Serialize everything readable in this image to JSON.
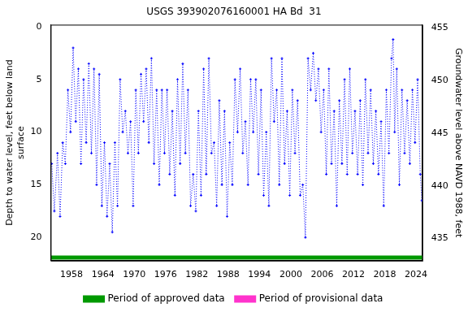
{
  "chart_data": {
    "type": "line",
    "title": "USGS 393902076160001 HA Bd  31",
    "y_label": [
      "Depth to water level, feet below land",
      "surface"
    ],
    "y2_label": "Groundwater level above NAVD 1988, feet",
    "xlim": [
      1954,
      2025.2
    ],
    "xticks": [
      1958,
      1964,
      1970,
      1976,
      1982,
      1988,
      1994,
      2000,
      2006,
      2012,
      2018,
      2024
    ],
    "ylim": [
      22.2,
      -0.2
    ],
    "yticks": [
      0,
      5,
      10,
      15,
      20
    ],
    "y2lim": [
      432.9,
      455.3
    ],
    "y2ticks": [
      435,
      440,
      445,
      450,
      455
    ],
    "grid": false,
    "legend": "bottom",
    "series": [
      {
        "color": "#0000ff",
        "marker": "plus",
        "line_style": "dotted",
        "x": [
          1954.2,
          1954.7,
          1955.3,
          1955.8,
          1956.3,
          1956.8,
          1957.3,
          1957.8,
          1958.3,
          1958.8,
          1959.3,
          1959.8,
          1960.3,
          1960.8,
          1961.3,
          1961.8,
          1962.3,
          1962.8,
          1963.3,
          1963.8,
          1964.3,
          1964.8,
          1965.3,
          1965.8,
          1966.3,
          1966.8,
          1967.3,
          1967.8,
          1968.3,
          1968.8,
          1969.3,
          1969.8,
          1970.3,
          1970.8,
          1971.3,
          1971.8,
          1972.3,
          1972.8,
          1973.3,
          1973.8,
          1974.3,
          1974.8,
          1975.3,
          1975.8,
          1976.3,
          1976.8,
          1977.3,
          1977.8,
          1978.3,
          1978.8,
          1979.3,
          1979.8,
          1980.3,
          1980.8,
          1981.3,
          1981.8,
          1982.3,
          1982.8,
          1983.3,
          1983.8,
          1984.3,
          1984.8,
          1985.3,
          1985.8,
          1986.3,
          1986.8,
          1987.3,
          1987.8,
          1988.3,
          1988.8,
          1989.3,
          1989.8,
          1990.3,
          1990.8,
          1991.3,
          1991.8,
          1992.3,
          1992.8,
          1993.3,
          1993.8,
          1994.3,
          1994.8,
          1995.3,
          1995.8,
          1996.3,
          1996.8,
          1997.3,
          1997.8,
          1998.3,
          1998.8,
          1999.3,
          1999.8,
          2000.3,
          2000.8,
          2001.3,
          2001.8,
          2002.3,
          2002.8,
          2003.3,
          2003.8,
          2004.3,
          2004.8,
          2005.3,
          2005.8,
          2006.3,
          2006.8,
          2007.3,
          2007.8,
          2008.3,
          2008.8,
          2009.3,
          2009.8,
          2010.3,
          2010.8,
          2011.3,
          2011.8,
          2012.3,
          2012.8,
          2013.3,
          2013.8,
          2014.3,
          2014.8,
          2015.3,
          2015.8,
          2016.3,
          2016.8,
          2017.3,
          2017.8,
          2018.3,
          2018.8,
          2019.3,
          2019.6,
          2019.9,
          2020.3,
          2020.8,
          2021.3,
          2021.8,
          2022.3,
          2022.8,
          2023.3,
          2023.8,
          2024.3,
          2024.8,
          2025.1
        ],
        "values": [
          13,
          17.5,
          12,
          18,
          11,
          13,
          6,
          10,
          2,
          9,
          4,
          13,
          5,
          11,
          3.5,
          12,
          4,
          15,
          4.5,
          17,
          11,
          18,
          13,
          19.5,
          11,
          17,
          5,
          10,
          8,
          12,
          9,
          17,
          6,
          12,
          4.5,
          9,
          4,
          11,
          3,
          13,
          6,
          15,
          6,
          12,
          6,
          14,
          8,
          16,
          5,
          13,
          3.5,
          12,
          6,
          17,
          14,
          17.5,
          8,
          16,
          4,
          14,
          3,
          12,
          11,
          17,
          7,
          15,
          8,
          18,
          11,
          15,
          5,
          10,
          4,
          12,
          9,
          15,
          5,
          10,
          5,
          14,
          6,
          16,
          10,
          17,
          3,
          9,
          6,
          15,
          3,
          13,
          8,
          16,
          6,
          12,
          7,
          16,
          15,
          20,
          3,
          6,
          2.5,
          7,
          4,
          10,
          6,
          14,
          4,
          13,
          8,
          17,
          7,
          13,
          5,
          14,
          4,
          12,
          8,
          14,
          7,
          15,
          5,
          12,
          6,
          13,
          8,
          14,
          9,
          17,
          6,
          12,
          3,
          1.2,
          10,
          4,
          15,
          6,
          12,
          7,
          13,
          6,
          11,
          5,
          14,
          16.5
        ]
      },
      {
        "name": "Period of approved data",
        "color": "#009900",
        "x": [
          1954,
          2025.2
        ],
        "values": [
          21.9,
          21.9
        ]
      },
      {
        "name": "Period of provisional data",
        "color": "#ff33cc",
        "x": [],
        "values": []
      }
    ]
  }
}
